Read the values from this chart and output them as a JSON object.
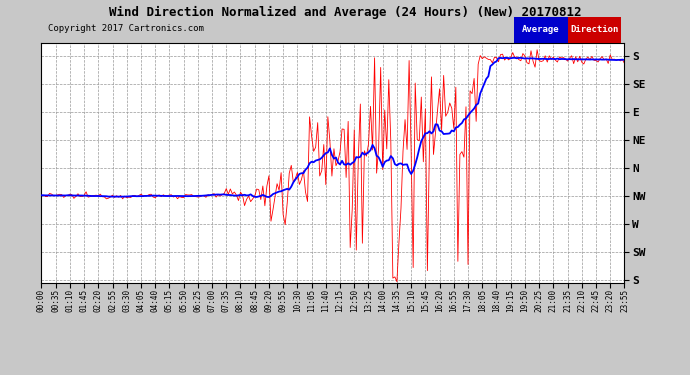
{
  "title": "Wind Direction Normalized and Average (24 Hours) (New) 20170812",
  "copyright": "Copyright 2017 Cartronics.com",
  "background_color": "#c8c8c8",
  "plot_bg_color": "#ffffff",
  "grid_color": "#999999",
  "ytick_labels": [
    "S",
    "SE",
    "E",
    "NE",
    "N",
    "NW",
    "W",
    "SW",
    "S"
  ],
  "ytick_values": [
    360,
    315,
    270,
    225,
    180,
    135,
    90,
    45,
    0
  ],
  "ylim": [
    -5,
    380
  ],
  "avg_label": "Average",
  "dir_label": "Direction",
  "n_points": 288,
  "tick_step_minutes": 35
}
